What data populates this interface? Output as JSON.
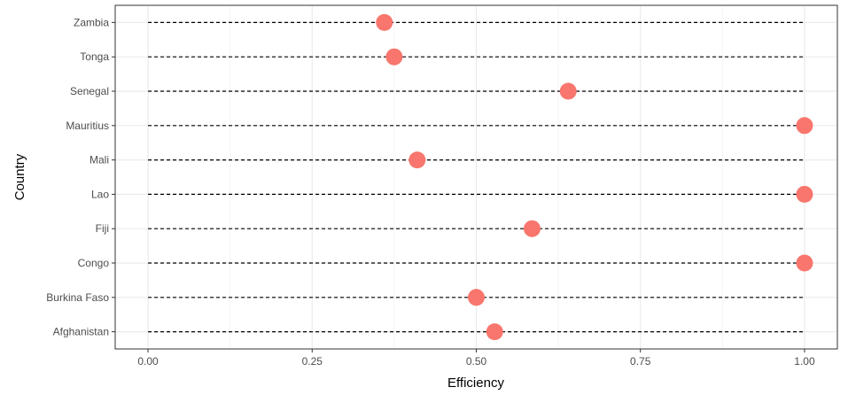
{
  "chart_data": {
    "type": "scatter",
    "xlabel": "Efficiency",
    "ylabel": "Country",
    "xlim": [
      -0.05,
      1.05
    ],
    "x_ticks": [
      0.0,
      0.25,
      0.5,
      0.75,
      1.0
    ],
    "x_tick_labels": [
      "0.00",
      "0.25",
      "0.50",
      "0.75",
      "1.00"
    ],
    "categories": [
      "Zambia",
      "Tonga",
      "Senegal",
      "Mauritius",
      "Mali",
      "Lao",
      "Fiji",
      "Congo",
      "Burkina Faso",
      "Afghanistan"
    ],
    "values": [
      0.36,
      0.375,
      0.64,
      1.0,
      0.41,
      1.0,
      0.585,
      1.0,
      0.5,
      0.528
    ],
    "reference_line": {
      "from": 0.0,
      "to": 1.0,
      "style": "dashed"
    },
    "grid": true,
    "point_color": "#F8766D",
    "line_color": "#000000",
    "grid_color": "#ebebeb",
    "border_color": "#333333"
  }
}
